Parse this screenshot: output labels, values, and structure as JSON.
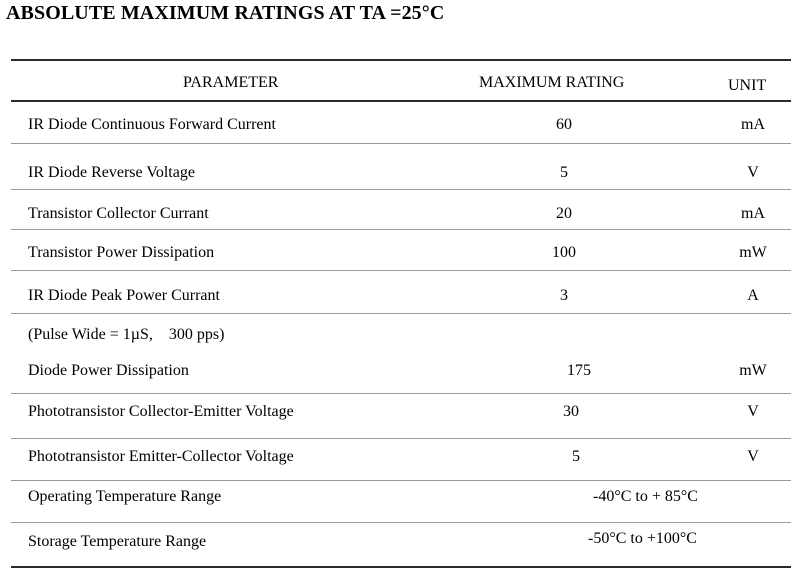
{
  "title": "ABSOLUTE MAXIMUM RATINGS AT TA =25°C",
  "columns": {
    "parameter": "PARAMETER",
    "rating": "MAXIMUM RATING",
    "unit": "UNIT"
  },
  "rows": [
    {
      "parameter": "IR Diode Continuous Forward Current",
      "rating": "60",
      "unit": "mA"
    },
    {
      "parameter": "IR Diode Reverse Voltage",
      "rating": "5",
      "unit": "V"
    },
    {
      "parameter": "Transistor Collector Currant",
      "rating": "20",
      "unit": "mA"
    },
    {
      "parameter": "Transistor Power Dissipation",
      "rating": "100",
      "unit": "mW"
    },
    {
      "parameter": "IR Diode Peak Power Currant",
      "rating": "3",
      "unit": "A"
    },
    {
      "parameter": "(Pulse Wide = 1µS,    300 pps)",
      "rating": "",
      "unit": ""
    },
    {
      "parameter": "Diode Power Dissipation",
      "rating": "175",
      "unit": "mW"
    },
    {
      "parameter": "Phototransistor Collector-Emitter Voltage",
      "rating": "30",
      "unit": "V"
    },
    {
      "parameter": "Phototransistor Emitter-Collector Voltage",
      "rating": "5",
      "unit": "V"
    },
    {
      "parameter": "Operating Temperature Range",
      "rating": "-40°C to + 85°C",
      "unit": ""
    },
    {
      "parameter": "Storage Temperature Range",
      "rating": "-50°C to +100°C",
      "unit": ""
    }
  ]
}
